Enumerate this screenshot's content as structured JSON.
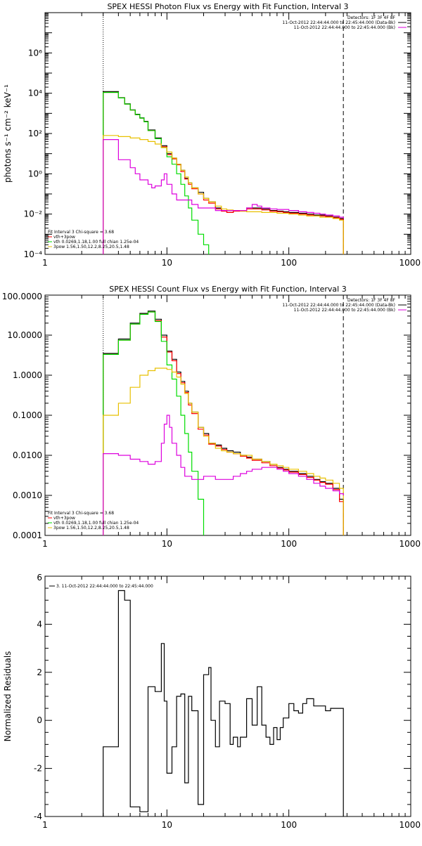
{
  "colors": {
    "black": "#000000",
    "red": "#ff0000",
    "green": "#00dd00",
    "yellow": "#e8c000",
    "magenta": "#dd00dd",
    "orange": "#ff8c00"
  },
  "chart_data": [
    {
      "type": "line",
      "title": "SPEX HESSI Photon Flux vs Energy with Fit Function, Interval 3",
      "xlabel": "",
      "ylabel": "photons s⁻¹ cm⁻² keV⁻¹",
      "xscale": "log",
      "yscale": "log",
      "xlim": [
        1,
        1000
      ],
      "ylim": [
        0.0001,
        100000000
      ],
      "xticks": [
        "1",
        "10",
        "100",
        "1000"
      ],
      "yticks": [
        "10⁻⁴",
        "10⁻²",
        "10⁰",
        "10²",
        "10⁴",
        "10⁶"
      ],
      "vlines": {
        "dotted": 3.0,
        "dashed": 280
      },
      "legend_top_right": [
        {
          "text": "Detectors: 1F 3F 4F 8F",
          "color": "#000000"
        },
        {
          "text": "11-Oct-2012 22:44:44.000 to 22:45:44.000 (Data-Bk)",
          "color": "#000000"
        },
        {
          "text": "11-Oct-2012 22:44:44.000 to 22:45:44.000 (Bk)",
          "color": "#dd00dd"
        }
      ],
      "legend_bottom_left": [
        {
          "text": "Fit Interval 3   Chi-square = 3.68",
          "color": "#000000"
        },
        {
          "text": "vth+3pow",
          "color": "#ff0000"
        },
        {
          "text": "vth 0.0269,1.18,1.00  full chian 1.25e-04",
          "color": "#00dd00"
        },
        {
          "text": "3pow 1.56,1.50,12.2,8.25,20.5,1.48",
          "color": "#e8c000"
        }
      ],
      "series": [
        {
          "color": "#000000",
          "x": [
            3.0,
            3.5,
            4.0,
            4.5,
            5.0,
            5.5,
            6.0,
            6.5,
            7.0,
            8.0,
            9.0,
            10.0,
            11.0,
            12.0,
            13.0,
            14.0,
            15.0,
            16.0,
            18.0,
            20.0,
            22.0,
            25.0,
            28.0,
            31.0,
            35.0,
            40.0,
            45.0,
            50.0,
            60.0,
            70.0,
            80.0,
            90.0,
            100.0,
            120.0,
            140.0,
            160.0,
            180.0,
            200.0,
            230.0,
            260.0,
            280.0
          ],
          "y": [
            12000,
            12000,
            6000,
            3000,
            1500,
            900,
            600,
            400,
            150,
            60,
            25,
            10,
            6,
            3,
            1.5,
            0.6,
            0.35,
            0.2,
            0.12,
            0.06,
            0.04,
            0.02,
            0.015,
            0.012,
            0.015,
            0.015,
            0.02,
            0.02,
            0.018,
            0.015,
            0.014,
            0.013,
            0.012,
            0.011,
            0.01,
            0.009,
            0.009,
            0.008,
            0.007,
            0.006,
            0.0001
          ]
        },
        {
          "color": "#ff0000",
          "x": [
            3.0,
            3.5,
            4.0,
            4.5,
            5.0,
            5.5,
            6.0,
            6.5,
            7.0,
            8.0,
            9.0,
            10.0,
            11.0,
            12.0,
            13.0,
            14.0,
            15.0,
            16.0,
            18.0,
            20.0,
            22.0,
            25.0,
            28.0,
            31.0,
            35.0,
            40.0,
            45.0,
            50.0,
            60.0,
            70.0,
            80.0,
            90.0,
            100.0,
            120.0,
            140.0,
            160.0,
            180.0,
            200.0,
            230.0,
            260.0,
            280.0
          ],
          "y": [
            11000,
            11000,
            5800,
            2900,
            1450,
            870,
            580,
            380,
            140,
            55,
            22,
            9,
            5.5,
            2.8,
            1.3,
            0.55,
            0.3,
            0.18,
            0.1,
            0.05,
            0.035,
            0.018,
            0.014,
            0.012,
            0.014,
            0.014,
            0.018,
            0.018,
            0.016,
            0.014,
            0.013,
            0.012,
            0.011,
            0.01,
            0.009,
            0.008,
            0.008,
            0.0075,
            0.0065,
            0.0055,
            0.0001
          ]
        },
        {
          "color": "#00dd00",
          "x": [
            3.0,
            3.5,
            4.0,
            4.5,
            5.0,
            5.5,
            6.0,
            6.5,
            7.0,
            8.0,
            9.0,
            10.0,
            11.0,
            12.0,
            13.0,
            14.0,
            15.0,
            16.0,
            18.0,
            20.0,
            22.0
          ],
          "y": [
            11000,
            11000,
            5800,
            2900,
            1450,
            870,
            580,
            380,
            140,
            55,
            20,
            7,
            3,
            1,
            0.3,
            0.08,
            0.02,
            0.005,
            0.001,
            0.0003,
            0.0001
          ]
        },
        {
          "color": "#e8c000",
          "x": [
            3.0,
            3.5,
            4.0,
            5.0,
            6.0,
            7.0,
            8.0,
            9.0,
            10.0,
            11.0,
            12.0,
            13.0,
            14.0,
            15.0,
            16.0,
            18.0,
            20.0,
            22.0,
            25.0,
            28.0,
            31.0,
            35.0,
            40.0,
            45.0,
            50.0,
            60.0,
            70.0,
            80.0,
            90.0,
            100.0,
            120.0,
            140.0,
            160.0,
            180.0,
            200.0,
            230.0,
            260.0,
            280.0
          ],
          "y": [
            80,
            80,
            70,
            60,
            50,
            40,
            30,
            20,
            12,
            6,
            3,
            1.5,
            0.7,
            0.35,
            0.2,
            0.1,
            0.06,
            0.04,
            0.025,
            0.018,
            0.016,
            0.015,
            0.014,
            0.013,
            0.013,
            0.012,
            0.012,
            0.011,
            0.011,
            0.01,
            0.009,
            0.008,
            0.008,
            0.007,
            0.007,
            0.006,
            0.005,
            0.0001
          ]
        },
        {
          "color": "#dd00dd",
          "x": [
            3.0,
            3.5,
            4.0,
            5.0,
            5.5,
            6.0,
            7.0,
            7.5,
            8.0,
            9.0,
            9.5,
            10.0,
            11.0,
            12.0,
            14.0,
            16.0,
            18.0,
            20.0,
            25.0,
            30.0,
            35.0,
            40.0,
            45.0,
            50.0,
            55.0,
            60.0,
            70.0,
            80.0,
            100.0,
            120.0,
            140.0,
            160.0,
            180.0,
            200.0,
            230.0,
            260.0,
            280.0
          ],
          "y": [
            50,
            50,
            5,
            2,
            1,
            0.5,
            0.3,
            0.2,
            0.25,
            0.5,
            1,
            0.3,
            0.1,
            0.05,
            0.05,
            0.03,
            0.02,
            0.02,
            0.015,
            0.015,
            0.015,
            0.015,
            0.02,
            0.03,
            0.025,
            0.02,
            0.018,
            0.017,
            0.015,
            0.013,
            0.012,
            0.011,
            0.01,
            0.009,
            0.008,
            0.007,
            0.006
          ]
        }
      ]
    },
    {
      "type": "line",
      "title": "SPEX HESSI Count Flux vs Energy with Fit Function, Interval 3",
      "xlabel": "",
      "ylabel": "",
      "xscale": "log",
      "yscale": "log",
      "xlim": [
        1,
        1000
      ],
      "ylim": [
        0.0001,
        100
      ],
      "xticks": [
        "1",
        "10",
        "100",
        "1000"
      ],
      "yticks": [
        "100.0000",
        "10.0000",
        "1.0000",
        "0.1000",
        "0.0100",
        "0.0010",
        "0.0001"
      ],
      "vlines": {
        "dotted": 3.0,
        "dashed": 280
      },
      "legend_top_right": [
        {
          "text": "Detectors: 1F 3F 4F 8F",
          "color": "#000000"
        },
        {
          "text": "11-Oct-2012 22:44:44.000 to 22:45:44.000 (Data-Bk)",
          "color": "#000000"
        },
        {
          "text": "11-Oct-2012 22:44:44.000 to 22:45:44.000 (Bk)",
          "color": "#dd00dd"
        }
      ],
      "legend_bottom_left": [
        {
          "text": "Fit Interval 3   Chi-square = 3.68",
          "color": "#000000"
        },
        {
          "text": "vth+3pow",
          "color": "#ff0000"
        },
        {
          "text": "vth 0.0269,1.18,1.00  full chian 1.25e-04",
          "color": "#00dd00"
        },
        {
          "text": "3pow 1.56,1.50,12.2,8.25,20.5,1.48",
          "color": "#e8c000"
        }
      ],
      "series": [
        {
          "color": "#000000",
          "x": [
            3.0,
            4.0,
            5.0,
            6.0,
            7.0,
            8.0,
            9.0,
            10.0,
            11.0,
            12.0,
            13.0,
            14.0,
            15.0,
            16.0,
            18.0,
            20.0,
            22.0,
            25.0,
            28.0,
            31.0,
            35.0,
            40.0,
            45.0,
            50.0,
            60.0,
            70.0,
            80.0,
            90.0,
            100.0,
            120.0,
            140.0,
            160.0,
            180.0,
            200.0,
            230.0,
            260.0,
            280.0
          ],
          "y": [
            3.5,
            8,
            20,
            35,
            40,
            25,
            10,
            4,
            2.5,
            1.2,
            0.7,
            0.4,
            0.2,
            0.12,
            0.05,
            0.035,
            0.02,
            0.018,
            0.015,
            0.013,
            0.012,
            0.01,
            0.009,
            0.008,
            0.007,
            0.006,
            0.005,
            0.0045,
            0.004,
            0.0035,
            0.003,
            0.0025,
            0.0022,
            0.002,
            0.0015,
            0.0008,
            0.0001
          ]
        },
        {
          "color": "#ff0000",
          "x": [
            3.0,
            4.0,
            5.0,
            6.0,
            7.0,
            8.0,
            9.0,
            10.0,
            11.0,
            12.0,
            13.0,
            14.0,
            15.0,
            16.0,
            18.0,
            20.0,
            22.0,
            25.0,
            28.0,
            31.0,
            35.0,
            40.0,
            45.0,
            50.0,
            60.0,
            70.0,
            80.0,
            90.0,
            100.0,
            120.0,
            140.0,
            160.0,
            180.0,
            200.0,
            230.0,
            260.0,
            280.0
          ],
          "y": [
            3.3,
            7.5,
            19,
            33,
            38,
            23,
            9,
            3.8,
            2.3,
            1.1,
            0.65,
            0.37,
            0.18,
            0.11,
            0.045,
            0.032,
            0.019,
            0.017,
            0.014,
            0.012,
            0.011,
            0.0095,
            0.0085,
            0.0075,
            0.0065,
            0.0055,
            0.0048,
            0.0043,
            0.0038,
            0.0033,
            0.0028,
            0.0024,
            0.0021,
            0.0019,
            0.0014,
            0.0007,
            0.0001
          ]
        },
        {
          "color": "#00dd00",
          "x": [
            3.0,
            4.0,
            5.0,
            6.0,
            7.0,
            8.0,
            9.0,
            10.0,
            11.0,
            12.0,
            13.0,
            14.0,
            15.0,
            16.0,
            18.0,
            20.0
          ],
          "y": [
            3.3,
            7.5,
            19,
            33,
            38,
            22,
            7,
            1.8,
            0.8,
            0.3,
            0.1,
            0.035,
            0.012,
            0.004,
            0.0008,
            0.0001
          ]
        },
        {
          "color": "#e8c000",
          "x": [
            3.0,
            4.0,
            5.0,
            6.0,
            7.0,
            8.0,
            9.0,
            10.0,
            11.0,
            12.0,
            13.0,
            14.0,
            15.0,
            16.0,
            18.0,
            20.0,
            22.0,
            25.0,
            28.0,
            31.0,
            35.0,
            40.0,
            50.0,
            60.0,
            70.0,
            80.0,
            90.0,
            100.0,
            120.0,
            140.0,
            160.0,
            180.0,
            200.0,
            230.0,
            260.0,
            280.0
          ],
          "y": [
            0.1,
            0.2,
            0.5,
            1.0,
            1.3,
            1.5,
            1.5,
            1.4,
            1.2,
            0.9,
            0.6,
            0.35,
            0.2,
            0.12,
            0.05,
            0.03,
            0.02,
            0.015,
            0.013,
            0.012,
            0.011,
            0.01,
            0.008,
            0.007,
            0.006,
            0.0055,
            0.005,
            0.0045,
            0.004,
            0.0035,
            0.003,
            0.0027,
            0.0024,
            0.002,
            0.0015,
            0.0001
          ]
        },
        {
          "color": "#dd00dd",
          "x": [
            3.0,
            4.0,
            5.0,
            6.0,
            7.0,
            8.0,
            9.0,
            9.5,
            10.0,
            10.5,
            11.0,
            12.0,
            13.0,
            14.0,
            15.0,
            16.0,
            18.0,
            20.0,
            25.0,
            30.0,
            35.0,
            40.0,
            45.0,
            50.0,
            60.0,
            70.0,
            80.0,
            90.0,
            100.0,
            120.0,
            140.0,
            160.0,
            180.0,
            200.0,
            230.0,
            260.0,
            280.0
          ],
          "y": [
            0.011,
            0.01,
            0.008,
            0.007,
            0.006,
            0.007,
            0.02,
            0.06,
            0.1,
            0.05,
            0.02,
            0.01,
            0.005,
            0.003,
            0.003,
            0.0025,
            0.0025,
            0.003,
            0.0025,
            0.0025,
            0.003,
            0.0035,
            0.004,
            0.0045,
            0.005,
            0.005,
            0.0045,
            0.004,
            0.0035,
            0.003,
            0.0025,
            0.002,
            0.0017,
            0.0015,
            0.0013,
            0.0011,
            0.001
          ]
        }
      ]
    },
    {
      "type": "line",
      "title": "",
      "xlabel": "",
      "ylabel": "Normalized Residuals",
      "xscale": "log",
      "yscale": "linear",
      "xlim": [
        1,
        1000
      ],
      "ylim": [
        -4,
        6
      ],
      "xticks": [
        "1",
        "10",
        "100",
        "1000"
      ],
      "yticks": [
        "-4",
        "-2",
        "0",
        "2",
        "4",
        "6"
      ],
      "legend_top_left": [
        {
          "text": "3. 11-Oct-2012 22:44:44.000 to 22:45:44.000",
          "color": "#000000"
        }
      ],
      "series": [
        {
          "color": "#000000",
          "x": [
            3.0,
            4.0,
            4.5,
            5.0,
            6.0,
            7.0,
            8.0,
            9.0,
            9.5,
            10.0,
            11.0,
            12.0,
            13.0,
            14.0,
            15.0,
            16.0,
            18.0,
            20.0,
            22.0,
            23.0,
            25.0,
            27.0,
            30.0,
            33.0,
            35.0,
            38.0,
            40.0,
            45.0,
            50.0,
            55.0,
            60.0,
            65.0,
            70.0,
            75.0,
            80.0,
            85.0,
            90.0,
            100.0,
            110.0,
            120.0,
            130.0,
            140.0,
            160.0,
            180.0,
            200.0,
            220.0,
            240.0,
            260.0,
            280.0
          ],
          "y": [
            -1.1,
            5.4,
            5.0,
            -3.6,
            -3.8,
            1.4,
            1.2,
            3.2,
            0.8,
            -2.2,
            -1.1,
            1.0,
            1.1,
            -2.6,
            1.0,
            0.4,
            -3.5,
            1.9,
            2.2,
            0.0,
            -1.1,
            0.8,
            0.7,
            -1.0,
            -0.7,
            -1.1,
            -0.7,
            0.9,
            -0.2,
            1.4,
            -0.2,
            -0.7,
            -1.0,
            -0.3,
            -0.8,
            -0.3,
            0.1,
            0.7,
            0.4,
            0.3,
            0.7,
            0.9,
            0.6,
            0.6,
            0.4,
            0.5,
            0.5,
            0.5,
            -4.0
          ]
        }
      ]
    }
  ]
}
